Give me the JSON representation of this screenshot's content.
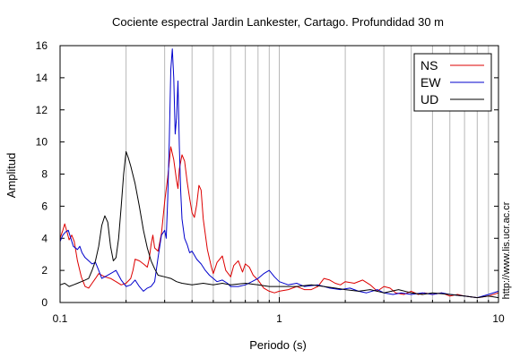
{
  "chart_data": {
    "type": "line",
    "title": "Cociente espectral Jardin Lankester, Cartago. Profundidad 30 m",
    "xlabel": "Periodo (s)",
    "ylabel": "Amplitud",
    "xscale": "log",
    "xlim": [
      0.1,
      10
    ],
    "ylim": [
      0,
      16
    ],
    "x_tick_labels": [
      "0.1",
      "1",
      "10"
    ],
    "y_ticks": [
      0,
      2,
      4,
      6,
      8,
      10,
      12,
      14,
      16
    ],
    "grid": "vertical log minor lines",
    "legend_position": "top-right",
    "side_note": "http://www.lis.ucr.ac.cr",
    "series": [
      {
        "name": "NS",
        "color": "#dd0000",
        "points": [
          [
            0.1,
            4.0
          ],
          [
            0.103,
            4.5
          ],
          [
            0.105,
            4.9
          ],
          [
            0.108,
            4.3
          ],
          [
            0.11,
            3.9
          ],
          [
            0.113,
            4.2
          ],
          [
            0.116,
            3.8
          ],
          [
            0.12,
            2.6
          ],
          [
            0.125,
            1.6
          ],
          [
            0.13,
            1.0
          ],
          [
            0.135,
            0.9
          ],
          [
            0.14,
            1.2
          ],
          [
            0.145,
            1.5
          ],
          [
            0.15,
            1.8
          ],
          [
            0.16,
            1.6
          ],
          [
            0.17,
            1.5
          ],
          [
            0.18,
            1.3
          ],
          [
            0.19,
            1.1
          ],
          [
            0.2,
            1.2
          ],
          [
            0.21,
            1.5
          ],
          [
            0.215,
            2.0
          ],
          [
            0.22,
            2.7
          ],
          [
            0.23,
            2.6
          ],
          [
            0.24,
            2.4
          ],
          [
            0.25,
            2.2
          ],
          [
            0.255,
            2.7
          ],
          [
            0.26,
            3.6
          ],
          [
            0.265,
            4.2
          ],
          [
            0.27,
            3.4
          ],
          [
            0.28,
            3.2
          ],
          [
            0.29,
            4.3
          ],
          [
            0.3,
            6.3
          ],
          [
            0.31,
            7.8
          ],
          [
            0.32,
            9.7
          ],
          [
            0.33,
            8.9
          ],
          [
            0.34,
            7.6
          ],
          [
            0.345,
            7.1
          ],
          [
            0.35,
            8.3
          ],
          [
            0.36,
            9.2
          ],
          [
            0.37,
            8.8
          ],
          [
            0.38,
            7.5
          ],
          [
            0.39,
            6.5
          ],
          [
            0.4,
            5.6
          ],
          [
            0.41,
            5.3
          ],
          [
            0.42,
            6.1
          ],
          [
            0.43,
            7.3
          ],
          [
            0.44,
            7.0
          ],
          [
            0.45,
            5.2
          ],
          [
            0.47,
            3.3
          ],
          [
            0.49,
            2.2
          ],
          [
            0.5,
            1.8
          ],
          [
            0.52,
            2.5
          ],
          [
            0.55,
            2.9
          ],
          [
            0.57,
            2.0
          ],
          [
            0.6,
            1.6
          ],
          [
            0.62,
            2.3
          ],
          [
            0.65,
            2.6
          ],
          [
            0.68,
            1.9
          ],
          [
            0.7,
            2.4
          ],
          [
            0.73,
            2.2
          ],
          [
            0.76,
            1.7
          ],
          [
            0.8,
            1.4
          ],
          [
            0.85,
            0.9
          ],
          [
            0.9,
            0.7
          ],
          [
            0.95,
            0.6
          ],
          [
            1.0,
            0.7
          ],
          [
            1.1,
            0.8
          ],
          [
            1.2,
            1.0
          ],
          [
            1.3,
            0.8
          ],
          [
            1.4,
            0.8
          ],
          [
            1.5,
            1.0
          ],
          [
            1.6,
            1.5
          ],
          [
            1.7,
            1.4
          ],
          [
            1.8,
            1.2
          ],
          [
            1.9,
            1.1
          ],
          [
            2.0,
            1.3
          ],
          [
            2.2,
            1.2
          ],
          [
            2.4,
            1.4
          ],
          [
            2.6,
            1.1
          ],
          [
            2.8,
            0.7
          ],
          [
            3.0,
            1.0
          ],
          [
            3.2,
            0.9
          ],
          [
            3.4,
            0.6
          ],
          [
            3.7,
            0.5
          ],
          [
            4.0,
            0.7
          ],
          [
            4.3,
            0.5
          ],
          [
            4.6,
            0.6
          ],
          [
            5.0,
            0.5
          ],
          [
            5.5,
            0.6
          ],
          [
            6.0,
            0.4
          ],
          [
            6.5,
            0.5
          ],
          [
            7.0,
            0.4
          ],
          [
            8.0,
            0.3
          ],
          [
            9.0,
            0.4
          ],
          [
            10.0,
            0.6
          ]
        ]
      },
      {
        "name": "EW",
        "color": "#0000cc",
        "points": [
          [
            0.1,
            3.8
          ],
          [
            0.103,
            4.2
          ],
          [
            0.106,
            4.4
          ],
          [
            0.109,
            4.5
          ],
          [
            0.112,
            4.0
          ],
          [
            0.115,
            3.5
          ],
          [
            0.12,
            3.3
          ],
          [
            0.123,
            3.5
          ],
          [
            0.126,
            3.1
          ],
          [
            0.13,
            2.8
          ],
          [
            0.135,
            2.6
          ],
          [
            0.14,
            2.4
          ],
          [
            0.145,
            2.5
          ],
          [
            0.15,
            2.0
          ],
          [
            0.155,
            1.5
          ],
          [
            0.16,
            1.6
          ],
          [
            0.17,
            1.8
          ],
          [
            0.18,
            2.0
          ],
          [
            0.19,
            1.4
          ],
          [
            0.2,
            1.0
          ],
          [
            0.21,
            1.1
          ],
          [
            0.22,
            1.4
          ],
          [
            0.23,
            1.0
          ],
          [
            0.24,
            0.7
          ],
          [
            0.25,
            0.9
          ],
          [
            0.26,
            1.0
          ],
          [
            0.27,
            1.3
          ],
          [
            0.28,
            2.8
          ],
          [
            0.29,
            4.2
          ],
          [
            0.3,
            4.5
          ],
          [
            0.305,
            4.0
          ],
          [
            0.31,
            6.5
          ],
          [
            0.315,
            10.0
          ],
          [
            0.32,
            14.5
          ],
          [
            0.325,
            15.8
          ],
          [
            0.33,
            14.0
          ],
          [
            0.335,
            10.5
          ],
          [
            0.34,
            11.5
          ],
          [
            0.345,
            13.8
          ],
          [
            0.35,
            9.8
          ],
          [
            0.355,
            7.0
          ],
          [
            0.36,
            5.2
          ],
          [
            0.37,
            4.0
          ],
          [
            0.38,
            3.6
          ],
          [
            0.39,
            3.1
          ],
          [
            0.4,
            3.2
          ],
          [
            0.42,
            2.7
          ],
          [
            0.44,
            2.4
          ],
          [
            0.46,
            2.0
          ],
          [
            0.48,
            1.7
          ],
          [
            0.5,
            1.5
          ],
          [
            0.52,
            1.3
          ],
          [
            0.55,
            1.4
          ],
          [
            0.58,
            1.2
          ],
          [
            0.6,
            1.0
          ],
          [
            0.65,
            1.0
          ],
          [
            0.7,
            1.1
          ],
          [
            0.75,
            1.3
          ],
          [
            0.8,
            1.5
          ],
          [
            0.85,
            1.8
          ],
          [
            0.9,
            2.0
          ],
          [
            0.95,
            1.6
          ],
          [
            1.0,
            1.3
          ],
          [
            1.1,
            1.1
          ],
          [
            1.2,
            1.2
          ],
          [
            1.3,
            1.0
          ],
          [
            1.5,
            1.1
          ],
          [
            1.7,
            0.9
          ],
          [
            1.9,
            0.8
          ],
          [
            2.1,
            0.9
          ],
          [
            2.3,
            0.7
          ],
          [
            2.5,
            0.6
          ],
          [
            2.8,
            0.8
          ],
          [
            3.0,
            0.6
          ],
          [
            3.3,
            0.5
          ],
          [
            3.6,
            0.6
          ],
          [
            4.0,
            0.5
          ],
          [
            4.5,
            0.6
          ],
          [
            5.0,
            0.5
          ],
          [
            5.5,
            0.6
          ],
          [
            6.0,
            0.5
          ],
          [
            7.0,
            0.4
          ],
          [
            8.0,
            0.3
          ],
          [
            9.0,
            0.5
          ],
          [
            10.0,
            0.7
          ]
        ]
      },
      {
        "name": "UD",
        "color": "#000000",
        "points": [
          [
            0.1,
            1.1
          ],
          [
            0.105,
            1.2
          ],
          [
            0.11,
            1.0
          ],
          [
            0.115,
            1.1
          ],
          [
            0.12,
            1.2
          ],
          [
            0.125,
            1.3
          ],
          [
            0.13,
            1.4
          ],
          [
            0.135,
            1.5
          ],
          [
            0.14,
            2.0
          ],
          [
            0.145,
            2.6
          ],
          [
            0.15,
            3.5
          ],
          [
            0.155,
            4.8
          ],
          [
            0.16,
            5.4
          ],
          [
            0.165,
            5.0
          ],
          [
            0.17,
            3.5
          ],
          [
            0.175,
            2.6
          ],
          [
            0.18,
            2.8
          ],
          [
            0.185,
            4.0
          ],
          [
            0.19,
            6.0
          ],
          [
            0.195,
            8.0
          ],
          [
            0.2,
            9.4
          ],
          [
            0.205,
            9.0
          ],
          [
            0.21,
            8.5
          ],
          [
            0.22,
            7.4
          ],
          [
            0.23,
            6.0
          ],
          [
            0.24,
            4.5
          ],
          [
            0.25,
            3.4
          ],
          [
            0.26,
            2.6
          ],
          [
            0.27,
            2.1
          ],
          [
            0.28,
            1.7
          ],
          [
            0.3,
            1.6
          ],
          [
            0.32,
            1.5
          ],
          [
            0.34,
            1.3
          ],
          [
            0.36,
            1.2
          ],
          [
            0.4,
            1.1
          ],
          [
            0.45,
            1.2
          ],
          [
            0.5,
            1.1
          ],
          [
            0.55,
            1.2
          ],
          [
            0.6,
            1.1
          ],
          [
            0.7,
            1.2
          ],
          [
            0.8,
            1.1
          ],
          [
            0.9,
            1.0
          ],
          [
            1.0,
            1.0
          ],
          [
            1.2,
            1.0
          ],
          [
            1.4,
            1.1
          ],
          [
            1.6,
            1.0
          ],
          [
            1.8,
            0.9
          ],
          [
            2.0,
            0.8
          ],
          [
            2.3,
            0.7
          ],
          [
            2.6,
            0.8
          ],
          [
            3.0,
            0.6
          ],
          [
            3.5,
            0.8
          ],
          [
            4.0,
            0.6
          ],
          [
            4.5,
            0.5
          ],
          [
            5.0,
            0.6
          ],
          [
            6.0,
            0.5
          ],
          [
            7.0,
            0.4
          ],
          [
            8.0,
            0.3
          ],
          [
            9.0,
            0.4
          ],
          [
            10.0,
            0.3
          ]
        ]
      }
    ]
  }
}
